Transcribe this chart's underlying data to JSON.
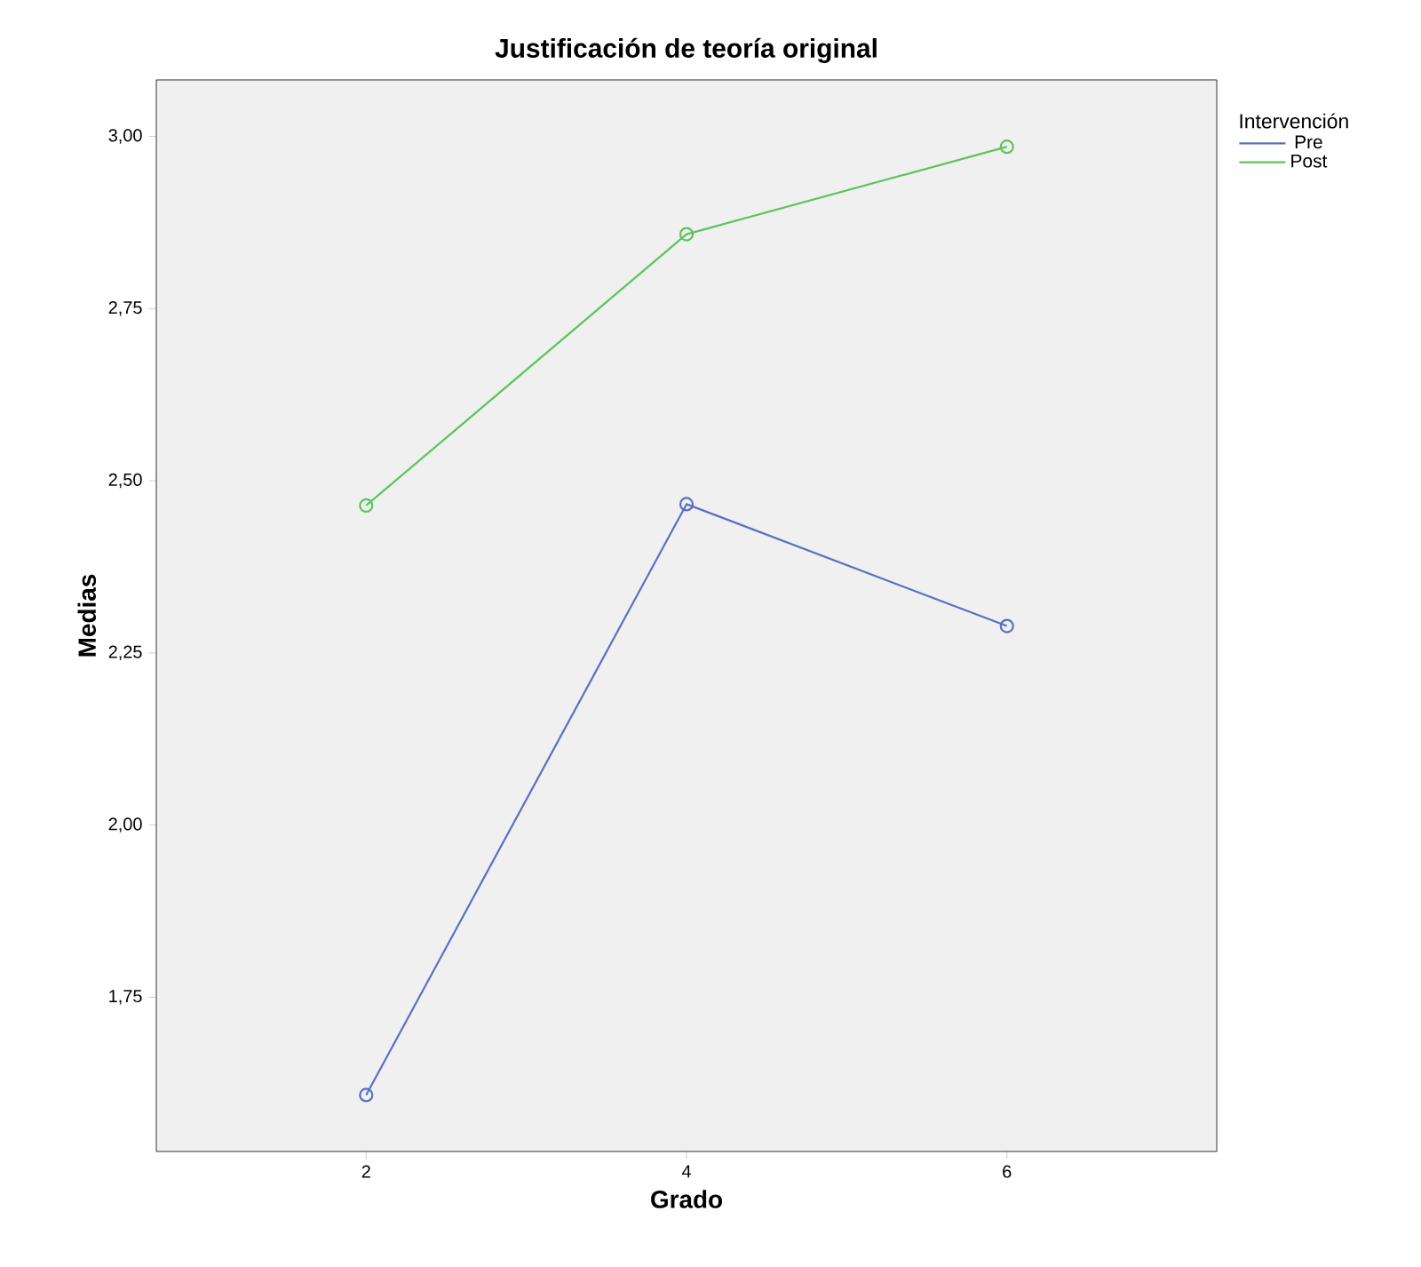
{
  "chart_data": {
    "type": "line",
    "title": "Justificación de teoría original",
    "xlabel": "Grado",
    "ylabel": "Medias",
    "legend_title": "Intervención",
    "x": [
      2,
      4,
      6
    ],
    "series": [
      {
        "name": "Pre",
        "color": "#5a6fc4",
        "values": [
          1.608,
          2.466,
          2.289
        ]
      },
      {
        "name": "Post",
        "color": "#5cc45c",
        "values": [
          2.464,
          2.858,
          2.985
        ]
      }
    ],
    "xlim": [
      0.69,
      7.31
    ],
    "ylim": [
      1.526,
      3.082
    ],
    "xticks": [
      2,
      4,
      6
    ],
    "yticks": [
      {
        "value": 1.75,
        "label": "1,75"
      },
      {
        "value": 2.0,
        "label": "2,00"
      },
      {
        "value": 2.25,
        "label": "2,25"
      },
      {
        "value": 2.5,
        "label": "2,50"
      },
      {
        "value": 2.75,
        "label": "2,75"
      },
      {
        "value": 3.0,
        "label": "3,00"
      }
    ],
    "marker": "circle",
    "line_style": "solid",
    "grid": false,
    "legend": "top right"
  }
}
